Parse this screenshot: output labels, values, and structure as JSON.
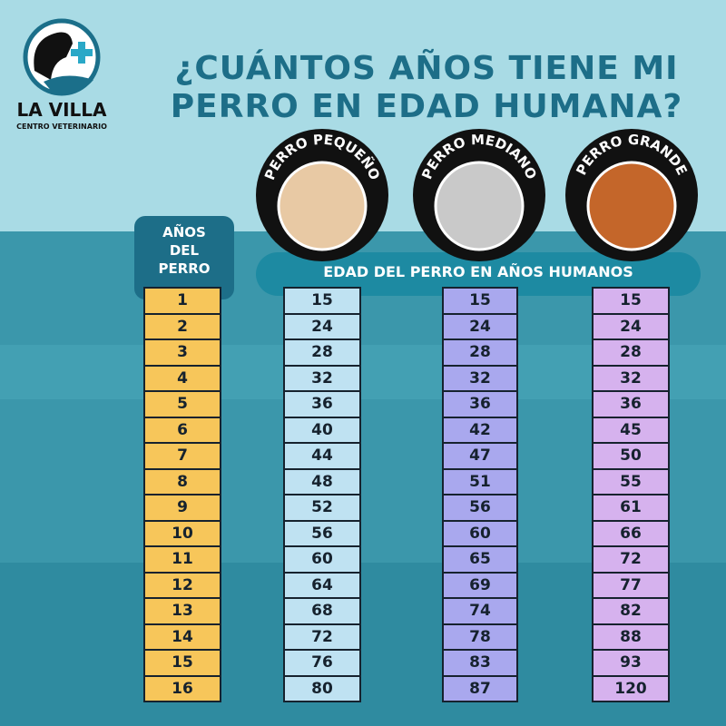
{
  "logo": {
    "name": "LA VILLA",
    "subtitle": "CENTRO VETERINARIO"
  },
  "title": [
    "¿CUÁNTOS AÑOS TIENE MI",
    "PERRO EN EDAD HUMANA?"
  ],
  "years_header": [
    "AÑOS",
    "DEL",
    "PERRO"
  ],
  "sizes": [
    "PERRO PEQUEÑO",
    "PERRO MEDIANO",
    "PERRO GRANDE"
  ],
  "human_header": "EDAD DEL PERRO EN AÑOS HUMANOS",
  "table": {
    "years": [
      1,
      2,
      3,
      4,
      5,
      6,
      7,
      8,
      9,
      10,
      11,
      12,
      13,
      14,
      15,
      16
    ],
    "small": [
      15,
      24,
      28,
      32,
      36,
      40,
      44,
      48,
      52,
      56,
      60,
      64,
      68,
      72,
      76,
      80
    ],
    "medium": [
      15,
      24,
      28,
      32,
      36,
      42,
      47,
      51,
      56,
      60,
      65,
      69,
      74,
      78,
      83,
      87
    ],
    "large": [
      15,
      24,
      28,
      32,
      36,
      45,
      50,
      55,
      61,
      66,
      72,
      77,
      82,
      88,
      93,
      120
    ]
  }
}
